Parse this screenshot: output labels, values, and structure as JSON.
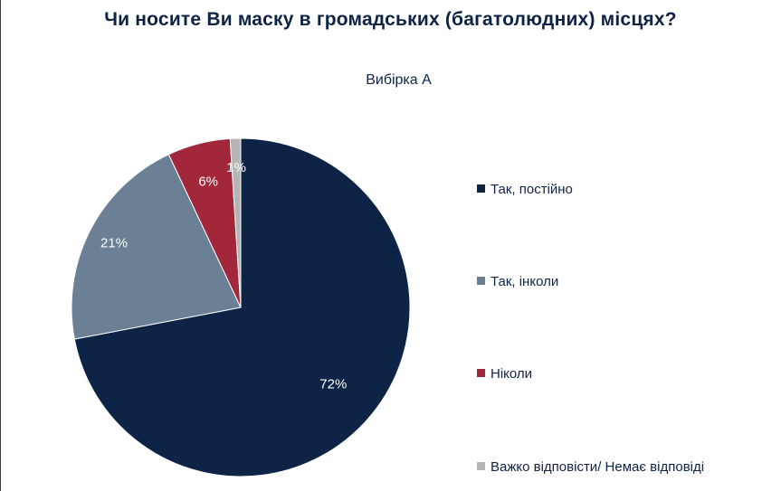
{
  "title": "Чи носите Ви маску в громадських (багатолюдних) місцях?",
  "subtitle": "Вибірка А",
  "chart_data": {
    "type": "pie",
    "title": "Чи носите Ви маску в громадських (багатолюдних) місцях?",
    "subtitle": "Вибірка А",
    "legend_position": "right",
    "start_angle_deg": 0,
    "direction": "clockwise",
    "slices": [
      {
        "label": "Так, постійно",
        "value": 72,
        "value_label": "72%",
        "color": "#0d2447"
      },
      {
        "label": "Так, інколи",
        "value": 21,
        "value_label": "21%",
        "color": "#6b7f95"
      },
      {
        "label": "Ніколи",
        "value": 6,
        "value_label": "6%",
        "color": "#a2273a"
      },
      {
        "label": "Важко відповісти/ Немає відповіді",
        "value": 1,
        "value_label": "1%",
        "color": "#b5b5b5"
      }
    ]
  }
}
